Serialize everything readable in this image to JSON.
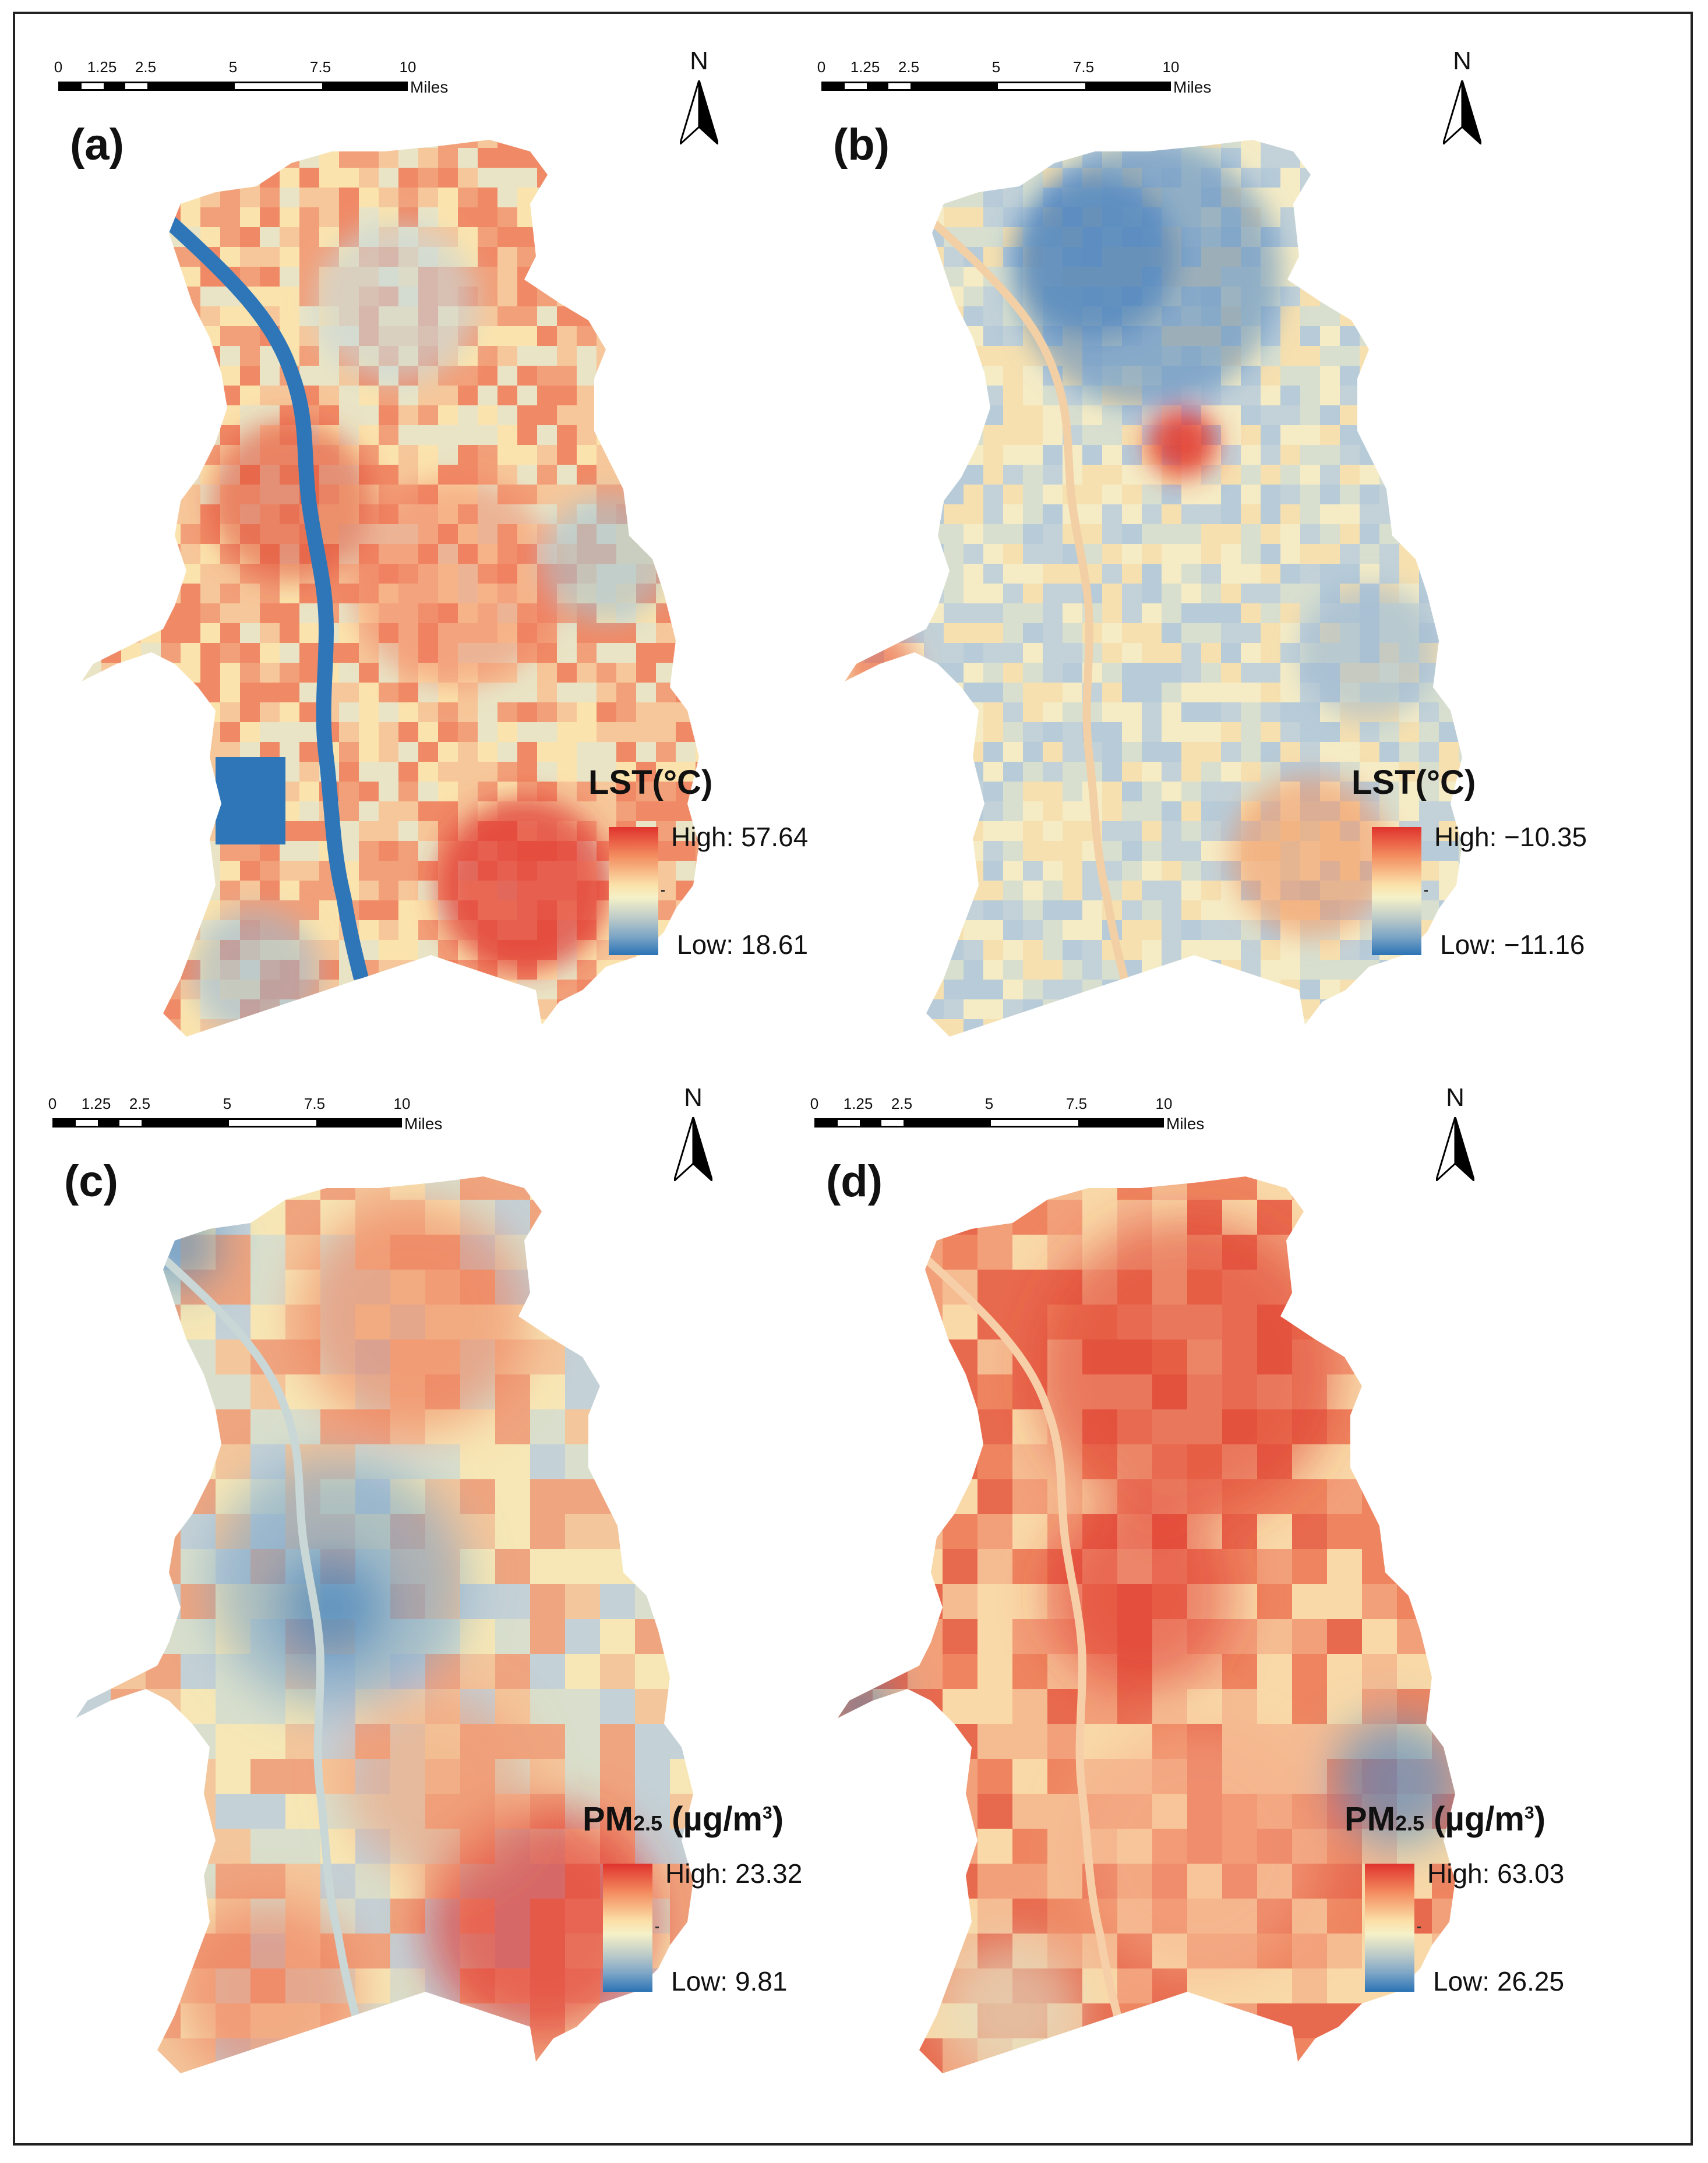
{
  "scale_bar": {
    "ticks": [
      "0",
      "1.25",
      "2.5",
      "5",
      "7.5",
      "10"
    ],
    "units": "Miles"
  },
  "north_label": "N",
  "panels": [
    {
      "label": "(a)",
      "legend_title": "LST(°C)",
      "legend_title_sub": "",
      "legend_title_rest": "",
      "legend_title_sup": "",
      "high": "High: 57.64",
      "low": "Low: 18.61",
      "palette": {
        "high": "#e0322c",
        "mid": "#f5f1c8",
        "low": "#2a73b5"
      }
    },
    {
      "label": "(b)",
      "legend_title": "LST(°C)",
      "legend_title_sub": "",
      "legend_title_rest": "",
      "legend_title_sup": "",
      "high": "High: −10.35",
      "low": "Low: −11.16",
      "palette": {
        "high": "#e0322c",
        "mid": "#f5f1c8",
        "low": "#2a73b5"
      }
    },
    {
      "label": "(c)",
      "legend_title": "PM",
      "legend_title_sub": "2.5",
      "legend_title_rest": " (µg/m",
      "legend_title_sup": "3",
      "legend_title_end": ")",
      "high": "High: 23.32",
      "low": "Low: 9.81",
      "palette": {
        "high": "#e0322c",
        "mid": "#f5f1c8",
        "low": "#2a73b5"
      }
    },
    {
      "label": "(d)",
      "legend_title": "PM",
      "legend_title_sub": "2.5",
      "legend_title_rest": " (µg/m",
      "legend_title_sup": "3",
      "legend_title_end": ")",
      "high": "High: 63.03",
      "low": "Low: 26.25",
      "palette": {
        "high": "#e0322c",
        "mid": "#f5f1c8",
        "low": "#2a73b5"
      }
    }
  ]
}
